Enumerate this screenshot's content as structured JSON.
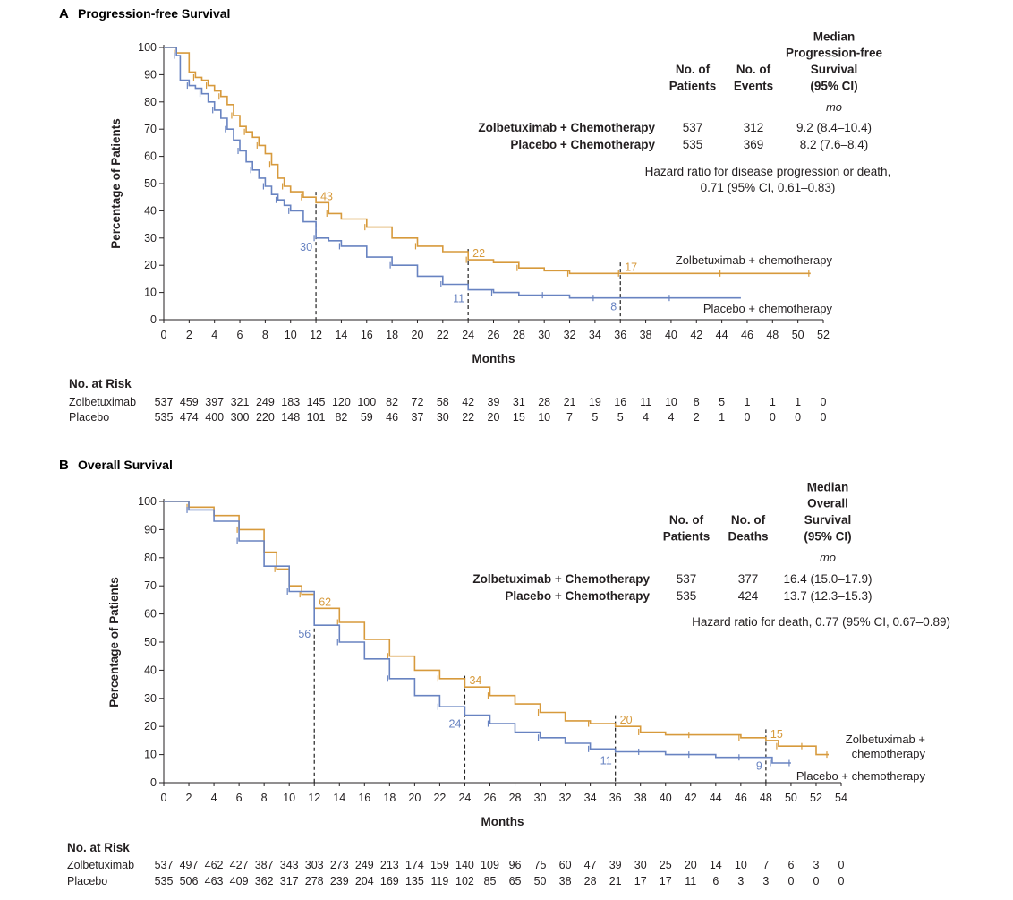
{
  "colors": {
    "zolbetuximab": "#d79a3c",
    "placebo": "#6883c1",
    "axis": "#231f20"
  },
  "chart_data": [
    {
      "type": "line",
      "panel_letter": "A",
      "title": "Progression-free Survival",
      "xlabel": "Months",
      "ylabel": "Percentage of Patients",
      "xlim": [
        0,
        52
      ],
      "ylim": [
        0,
        100
      ],
      "x_ticks": [
        0,
        2,
        4,
        6,
        8,
        10,
        12,
        14,
        16,
        18,
        20,
        22,
        24,
        26,
        28,
        30,
        32,
        34,
        36,
        38,
        40,
        42,
        44,
        46,
        48,
        50,
        52
      ],
      "y_ticks": [
        0,
        10,
        20,
        30,
        40,
        50,
        60,
        70,
        80,
        90,
        100
      ],
      "table_headers": {
        "patients": [
          "No. of",
          "Patients"
        ],
        "events": [
          "No. of",
          "Events"
        ],
        "median": [
          "Median",
          "Progression-free",
          "Survival",
          "(95% CI)"
        ],
        "unit": "mo"
      },
      "table_rows": [
        {
          "label": "Zolbetuximab + Chemotherapy",
          "patients": "537",
          "events": "312",
          "median": "9.2 (8.4–10.4)"
        },
        {
          "label": "Placebo + Chemotherapy",
          "patients": "535",
          "events": "369",
          "median": "8.2 (7.6–8.4)"
        }
      ],
      "hazard_note": [
        "Hazard ratio for disease progression or death,",
        "0.71 (95% CI, 0.61–0.83)"
      ],
      "curve_labels": {
        "zolbetuximab": [
          "Zolbetuximab + chemotherapy"
        ],
        "placebo": [
          "Placebo + chemotherapy"
        ]
      },
      "landmarks": [
        {
          "x": 12,
          "zolbetuximab": 43,
          "placebo": 30
        },
        {
          "x": 24,
          "zolbetuximab": 22,
          "placebo": 11
        },
        {
          "x": 36,
          "zolbetuximab": 17,
          "placebo": 8
        }
      ],
      "series": [
        {
          "name": "Zolbetuximab + chemotherapy",
          "key": "zolbetuximab",
          "x": [
            0,
            1,
            2,
            2.5,
            3,
            3.5,
            4,
            4.5,
            5,
            5.5,
            6,
            6.5,
            7,
            7.5,
            8,
            8.5,
            9,
            9.5,
            10,
            11,
            12,
            13,
            14,
            16,
            18,
            20,
            22,
            24,
            26,
            28,
            30,
            32,
            34,
            36,
            40,
            44,
            48,
            51
          ],
          "y": [
            100,
            98,
            91,
            89,
            88,
            86,
            84,
            82,
            79,
            75,
            71,
            69,
            67,
            64,
            61,
            57,
            52,
            49,
            47,
            45,
            43,
            39,
            37,
            34,
            30,
            27,
            25,
            22,
            21,
            19,
            18,
            17,
            17,
            17,
            17,
            17,
            17,
            17
          ]
        },
        {
          "name": "Placebo + chemotherapy",
          "key": "placebo",
          "x": [
            0,
            1,
            1.3,
            2,
            2.5,
            3,
            3.5,
            4,
            4.5,
            5,
            5.5,
            6,
            6.5,
            7,
            7.5,
            8,
            8.5,
            9,
            9.5,
            10,
            11,
            12,
            13,
            14,
            16,
            18,
            20,
            22,
            24,
            26,
            28,
            30,
            32,
            34,
            36,
            40,
            45.5
          ],
          "y": [
            100,
            97,
            88,
            86,
            85,
            83,
            80,
            77,
            74,
            70,
            66,
            62,
            58,
            55,
            52,
            49,
            46,
            44,
            42,
            40,
            36,
            30,
            29,
            27,
            23,
            20,
            16,
            13,
            11,
            10,
            9,
            9,
            8,
            8,
            8,
            8,
            8
          ]
        }
      ],
      "risk_title": "No. at Risk",
      "risk_times": [
        0,
        2,
        4,
        6,
        8,
        10,
        12,
        14,
        16,
        18,
        20,
        22,
        24,
        26,
        28,
        30,
        32,
        34,
        36,
        38,
        40,
        42,
        44,
        46,
        48,
        50,
        52
      ],
      "risk_rows": [
        {
          "label": "Zolbetuximab",
          "values": [
            "537",
            "459",
            "397",
            "321",
            "249",
            "183",
            "145",
            "120",
            "100",
            "82",
            "72",
            "58",
            "42",
            "39",
            "31",
            "28",
            "21",
            "19",
            "16",
            "11",
            "10",
            "8",
            "5",
            "1",
            "1",
            "1",
            "0"
          ]
        },
        {
          "label": "Placebo",
          "values": [
            "535",
            "474",
            "400",
            "300",
            "220",
            "148",
            "101",
            "82",
            "59",
            "46",
            "37",
            "30",
            "22",
            "20",
            "15",
            "10",
            "7",
            "5",
            "5",
            "4",
            "4",
            "2",
            "1",
            "0",
            "0",
            "0",
            "0"
          ]
        }
      ]
    },
    {
      "type": "line",
      "panel_letter": "B",
      "title": "Overall Survival",
      "xlabel": "Months",
      "ylabel": "Percentage of Patients",
      "xlim": [
        0,
        54
      ],
      "ylim": [
        0,
        100
      ],
      "x_ticks": [
        0,
        2,
        4,
        6,
        8,
        10,
        12,
        14,
        16,
        18,
        20,
        22,
        24,
        26,
        28,
        30,
        32,
        34,
        36,
        38,
        40,
        42,
        44,
        46,
        48,
        50,
        52,
        54
      ],
      "y_ticks": [
        0,
        10,
        20,
        30,
        40,
        50,
        60,
        70,
        80,
        90,
        100
      ],
      "table_headers": {
        "patients": [
          "No. of",
          "Patients"
        ],
        "events": [
          "No. of",
          "Deaths"
        ],
        "median": [
          "Median",
          "Overall",
          "Survival",
          "(95% CI)"
        ],
        "unit": "mo"
      },
      "table_rows": [
        {
          "label": "Zolbetuximab + Chemotherapy",
          "patients": "537",
          "events": "377",
          "median": "16.4 (15.0–17.9)"
        },
        {
          "label": "Placebo + Chemotherapy",
          "patients": "535",
          "events": "424",
          "median": "13.7 (12.3–15.3)"
        }
      ],
      "hazard_note": [
        "Hazard ratio for death, 0.77 (95% CI, 0.67–0.89)"
      ],
      "curve_labels": {
        "zolbetuximab": [
          "Zolbetuximab +",
          "chemotherapy"
        ],
        "placebo": [
          "Placebo + chemotherapy"
        ]
      },
      "landmarks": [
        {
          "x": 12,
          "zolbetuximab": 62,
          "placebo": 56
        },
        {
          "x": 24,
          "zolbetuximab": 34,
          "placebo": 24
        },
        {
          "x": 36,
          "zolbetuximab": 20,
          "placebo": 11
        },
        {
          "x": 48,
          "zolbetuximab": 15,
          "placebo": 9
        }
      ],
      "series": [
        {
          "name": "Zolbetuximab + chemotherapy",
          "key": "zolbetuximab",
          "x": [
            0,
            2,
            4,
            6,
            8,
            9,
            10,
            11,
            12,
            14,
            16,
            18,
            20,
            22,
            24,
            26,
            28,
            30,
            32,
            34,
            36,
            38,
            40,
            42,
            44,
            46,
            48,
            49,
            50,
            51,
            52,
            53
          ],
          "y": [
            100,
            98,
            95,
            90,
            82,
            76,
            70,
            67,
            62,
            57,
            51,
            45,
            40,
            37,
            34,
            31,
            28,
            25,
            22,
            21,
            20,
            18,
            17,
            17,
            17,
            16,
            15,
            13,
            13,
            13,
            10,
            10
          ]
        },
        {
          "name": "Placebo + chemotherapy",
          "key": "placebo",
          "x": [
            0,
            2,
            4,
            6,
            8,
            10,
            12,
            14,
            16,
            18,
            20,
            22,
            24,
            26,
            28,
            30,
            32,
            34,
            36,
            38,
            40,
            42,
            44,
            46,
            48,
            48.5,
            49,
            50
          ],
          "y": [
            100,
            97,
            93,
            86,
            77,
            68,
            56,
            50,
            44,
            37,
            31,
            27,
            24,
            21,
            18,
            16,
            14,
            12,
            11,
            11,
            10,
            10,
            9,
            9,
            9,
            7,
            7,
            7
          ]
        }
      ],
      "risk_title": "No. at Risk",
      "risk_times": [
        0,
        2,
        4,
        6,
        8,
        10,
        12,
        14,
        16,
        18,
        20,
        22,
        24,
        26,
        28,
        30,
        32,
        34,
        36,
        38,
        40,
        42,
        44,
        46,
        48,
        50,
        52,
        54
      ],
      "risk_rows": [
        {
          "label": "Zolbetuximab",
          "values": [
            "537",
            "497",
            "462",
            "427",
            "387",
            "343",
            "303",
            "273",
            "249",
            "213",
            "174",
            "159",
            "140",
            "109",
            "96",
            "75",
            "60",
            "47",
            "39",
            "30",
            "25",
            "20",
            "14",
            "10",
            "7",
            "6",
            "3",
            "0"
          ]
        },
        {
          "label": "Placebo",
          "values": [
            "535",
            "506",
            "463",
            "409",
            "362",
            "317",
            "278",
            "239",
            "204",
            "169",
            "135",
            "119",
            "102",
            "85",
            "65",
            "50",
            "38",
            "28",
            "21",
            "17",
            "17",
            "11",
            "6",
            "3",
            "3",
            "0",
            "0",
            "0"
          ]
        }
      ]
    }
  ]
}
